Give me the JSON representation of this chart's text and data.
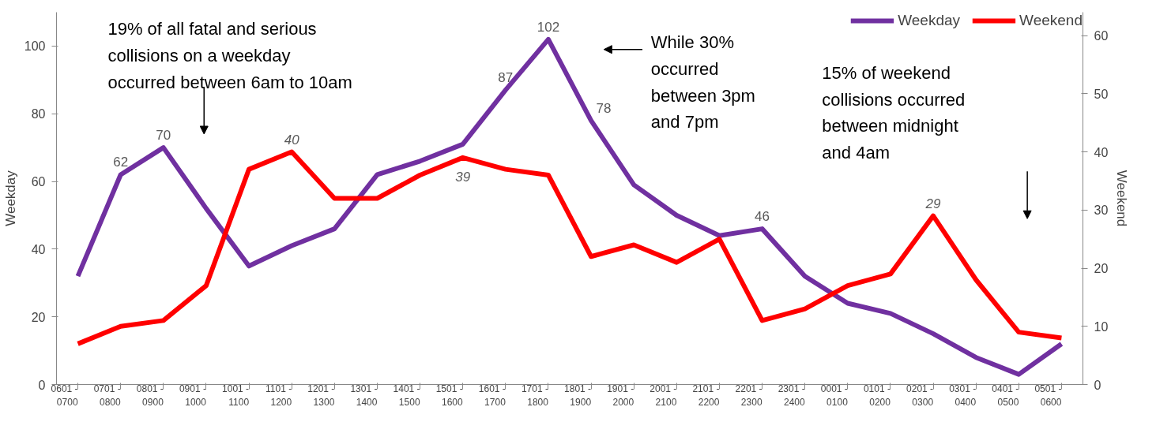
{
  "chart_data": {
    "type": "line",
    "ylabel": "Weekday",
    "y2label": "Weekend",
    "categories": [
      "0601 -\n0700",
      "0701 -\n0800",
      "0801 -\n0900",
      "0901 -\n1000",
      "1001 -\n1100",
      "1101 -\n1200",
      "1201 -\n1300",
      "1301 -\n1400",
      "1401 -\n1500",
      "1501 -\n1600",
      "1601 -\n1700",
      "1701 -\n1800",
      "1801 -\n1900",
      "1901 -\n2000",
      "2001 -\n2100",
      "2101 -\n2200",
      "2201 -\n2300",
      "2301 -\n2400",
      "0001 -\n0100",
      "0101 -\n0200",
      "0201 -\n0300",
      "0301 -\n0400",
      "0401 -\n0500",
      "0501 -\n0600"
    ],
    "series": [
      {
        "name": "Weekday",
        "color": "#7030a0",
        "values": [
          32,
          62,
          70,
          52,
          35,
          41,
          46,
          62,
          66,
          71,
          87,
          102,
          78,
          59,
          50,
          44,
          46,
          32,
          24,
          21,
          15,
          8,
          3,
          12
        ],
        "value_labels": [
          null,
          "62",
          "70",
          null,
          null,
          null,
          null,
          null,
          null,
          null,
          "87",
          "102",
          "78",
          null,
          null,
          null,
          "46",
          null,
          null,
          null,
          null,
          null,
          null,
          null
        ]
      },
      {
        "name": "Weekend",
        "color": "#ff0000",
        "axis": "y2",
        "values": [
          7,
          10,
          11,
          17,
          37,
          40,
          32,
          32,
          36,
          39,
          37,
          36,
          22,
          24,
          21,
          25,
          11,
          13,
          17,
          19,
          29,
          18,
          9,
          8
        ],
        "value_labels": [
          null,
          null,
          null,
          null,
          null,
          "40",
          null,
          null,
          null,
          "39",
          null,
          null,
          null,
          null,
          null,
          null,
          null,
          null,
          null,
          null,
          "29",
          null,
          null,
          null
        ]
      }
    ],
    "ylim": [
      0,
      110
    ],
    "yticks": [
      0,
      20,
      40,
      60,
      80,
      100
    ],
    "y2lim": [
      0,
      64
    ],
    "y2ticks": [
      0,
      10,
      20,
      30,
      40,
      50,
      60
    ],
    "grid": false,
    "legend": "top right",
    "marker": "none",
    "line_style": "solid",
    "annotations": [
      "19% of all fatal and serious\ncollisions on a weekday\noccurred between 6am to 10am",
      "While 30%\noccurred\nbetween 3pm\nand 7pm",
      "15% of weekend\ncollisions occurred\nbetween midnight\nand 4am"
    ]
  }
}
